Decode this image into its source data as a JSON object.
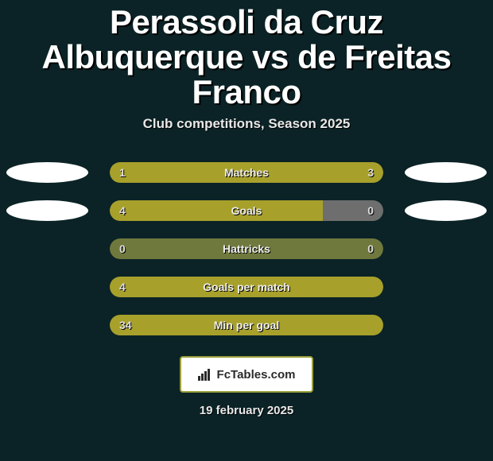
{
  "colors": {
    "background": "#0b2326",
    "title_color": "#ffffff",
    "title_shadow": "#000000",
    "subtitle_color": "#e8e8e8",
    "bar_primary": "#a7a02b",
    "bar_track": "#70793d",
    "bar_neutral": "#6e6e6e",
    "bar_value_text": "#dedede",
    "bar_label_text": "#eeeeee",
    "badge_fill": "#ffffff",
    "brand_bg": "#ffffff",
    "brand_border": "#9aa03a",
    "brand_text": "#2b2b2b",
    "date_color": "#e8e8e8"
  },
  "typography": {
    "title_fontsize": 42,
    "subtitle_fontsize": 17,
    "bar_label_fontsize": 14,
    "bar_value_fontsize": 14,
    "brand_fontsize": 15,
    "date_fontsize": 15
  },
  "header": {
    "title": "Perassoli da Cruz Albuquerque vs de Freitas Franco",
    "subtitle": "Club competitions, Season 2025"
  },
  "stats": [
    {
      "label": "Matches",
      "left_value": "1",
      "right_value": "3",
      "left_pct": 25,
      "right_pct": 75,
      "show_badges": true,
      "fill_mode": "split"
    },
    {
      "label": "Goals",
      "left_value": "4",
      "right_value": "0",
      "left_pct": 78,
      "right_pct": 0,
      "show_badges": true,
      "fill_mode": "left_neutral_right"
    },
    {
      "label": "Hattricks",
      "left_value": "0",
      "right_value": "0",
      "left_pct": 0,
      "right_pct": 0,
      "show_badges": false,
      "fill_mode": "track_only"
    },
    {
      "label": "Goals per match",
      "left_value": "4",
      "right_value": "",
      "left_pct": 100,
      "right_pct": 0,
      "show_badges": false,
      "fill_mode": "full_left"
    },
    {
      "label": "Min per goal",
      "left_value": "34",
      "right_value": "",
      "left_pct": 100,
      "right_pct": 0,
      "show_badges": false,
      "fill_mode": "full_left"
    }
  ],
  "brand": {
    "icon": "bar-chart-icon",
    "text": "FcTables.com"
  },
  "footer": {
    "date": "19 february 2025"
  }
}
